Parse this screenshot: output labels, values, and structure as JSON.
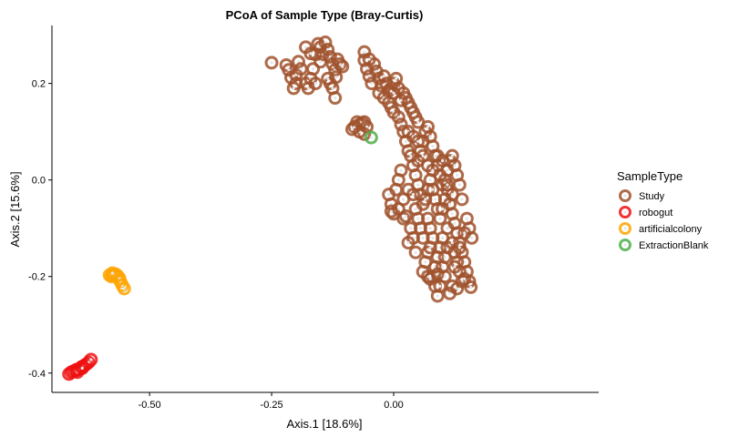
{
  "chart_data": {
    "type": "scatter",
    "title": "PCoA of Sample Type (Bray-Curtis)",
    "xlabel": "Axis.1   [18.6%]",
    "ylabel": "Axis.2   [15.6%]",
    "xlim": [
      -0.7,
      0.42
    ],
    "ylim": [
      -0.44,
      0.32
    ],
    "xticks": [
      -0.5,
      -0.25,
      0.0
    ],
    "xtick_labels": [
      "-0.50",
      "-0.25",
      "0.00"
    ],
    "yticks": [
      -0.4,
      -0.2,
      0.0,
      0.2
    ],
    "ytick_labels": [
      "-0.4",
      "-0.2",
      "0.0",
      "0.2"
    ],
    "grid": false,
    "legend": {
      "title": "SampleType",
      "position": "right"
    },
    "series": [
      {
        "name": "Study",
        "color": "#A0522D",
        "points": [
          [
            -0.25,
            0.243
          ],
          [
            -0.22,
            0.238
          ],
          [
            -0.215,
            0.228
          ],
          [
            -0.21,
            0.212
          ],
          [
            -0.2,
            0.218
          ],
          [
            -0.195,
            0.245
          ],
          [
            -0.19,
            0.23
          ],
          [
            -0.18,
            0.2
          ],
          [
            -0.175,
            0.19
          ],
          [
            -0.17,
            0.21
          ],
          [
            -0.165,
            0.23
          ],
          [
            -0.16,
            0.26
          ],
          [
            -0.155,
            0.282
          ],
          [
            -0.15,
            0.275
          ],
          [
            -0.145,
            0.26
          ],
          [
            -0.14,
            0.285
          ],
          [
            -0.135,
            0.27
          ],
          [
            -0.13,
            0.255
          ],
          [
            -0.125,
            0.24
          ],
          [
            -0.12,
            0.228
          ],
          [
            -0.118,
            0.213
          ],
          [
            -0.13,
            0.2
          ],
          [
            -0.135,
            0.21
          ],
          [
            -0.125,
            0.19
          ],
          [
            -0.12,
            0.17
          ],
          [
            -0.115,
            0.25
          ],
          [
            -0.11,
            0.24
          ],
          [
            -0.105,
            0.235
          ],
          [
            -0.18,
            0.275
          ],
          [
            -0.17,
            0.262
          ],
          [
            -0.15,
            0.245
          ],
          [
            -0.16,
            0.2
          ],
          [
            -0.2,
            0.2
          ],
          [
            -0.205,
            0.19
          ],
          [
            -0.06,
            0.248
          ],
          [
            -0.055,
            0.23
          ],
          [
            -0.05,
            0.215
          ],
          [
            -0.045,
            0.2
          ],
          [
            -0.04,
            0.24
          ],
          [
            -0.035,
            0.225
          ],
          [
            -0.03,
            0.21
          ],
          [
            -0.025,
            0.195
          ],
          [
            -0.03,
            0.18
          ],
          [
            -0.02,
            0.17
          ],
          [
            -0.015,
            0.2
          ],
          [
            -0.01,
            0.185
          ],
          [
            -0.005,
            0.19
          ],
          [
            0.0,
            0.2
          ],
          [
            0.005,
            0.21
          ],
          [
            0.01,
            0.19
          ],
          [
            0.02,
            0.18
          ],
          [
            0.025,
            0.17
          ],
          [
            0.03,
            0.16
          ],
          [
            0.035,
            0.15
          ],
          [
            0.04,
            0.14
          ],
          [
            0.045,
            0.13
          ],
          [
            0.05,
            0.12
          ],
          [
            -0.01,
            0.16
          ],
          [
            -0.005,
            0.15
          ],
          [
            0.0,
            0.14
          ],
          [
            -0.075,
            0.12
          ],
          [
            -0.07,
            0.115
          ],
          [
            -0.065,
            0.118
          ],
          [
            -0.06,
            0.12
          ],
          [
            -0.055,
            0.11
          ],
          [
            -0.06,
            0.095
          ],
          [
            -0.07,
            0.1
          ],
          [
            -0.08,
            0.11
          ],
          [
            -0.085,
            0.105
          ],
          [
            -0.06,
            0.265
          ],
          [
            -0.05,
            0.25
          ],
          [
            -0.02,
            0.215
          ],
          [
            0.0,
            0.18
          ],
          [
            0.015,
            0.165
          ],
          [
            0.01,
            0.13
          ],
          [
            0.015,
            0.115
          ],
          [
            0.02,
            0.1
          ],
          [
            0.025,
            0.08
          ],
          [
            0.03,
            0.06
          ],
          [
            0.035,
            0.05
          ],
          [
            0.04,
            0.03
          ],
          [
            0.05,
            0.04
          ],
          [
            0.055,
            0.06
          ],
          [
            0.06,
            0.08
          ],
          [
            0.065,
            0.1
          ],
          [
            0.07,
            0.11
          ],
          [
            0.075,
            0.09
          ],
          [
            0.08,
            0.07
          ],
          [
            0.085,
            0.05
          ],
          [
            0.09,
            0.03
          ],
          [
            0.095,
            0.01
          ],
          [
            0.1,
            -0.01
          ],
          [
            0.105,
            0.0
          ],
          [
            0.11,
            0.02
          ],
          [
            0.115,
            0.04
          ],
          [
            0.12,
            0.05
          ],
          [
            0.125,
            0.03
          ],
          [
            0.13,
            0.01
          ],
          [
            0.135,
            -0.01
          ],
          [
            0.045,
            0.01
          ],
          [
            0.05,
            -0.01
          ],
          [
            0.055,
            -0.03
          ],
          [
            0.06,
            -0.05
          ],
          [
            0.065,
            -0.04
          ],
          [
            0.07,
            -0.02
          ],
          [
            0.075,
            0.0
          ],
          [
            0.08,
            -0.02
          ],
          [
            0.085,
            -0.04
          ],
          [
            0.09,
            -0.06
          ],
          [
            0.095,
            -0.08
          ],
          [
            0.1,
            -0.06
          ],
          [
            0.105,
            -0.04
          ],
          [
            0.11,
            -0.02
          ],
          [
            0.115,
            -0.05
          ],
          [
            0.12,
            -0.07
          ],
          [
            0.125,
            -0.09
          ],
          [
            0.13,
            -0.11
          ],
          [
            0.135,
            -0.13
          ],
          [
            0.14,
            -0.15
          ],
          [
            0.145,
            -0.17
          ],
          [
            0.15,
            -0.19
          ],
          [
            0.155,
            -0.21
          ],
          [
            0.158,
            -0.222
          ],
          [
            0.11,
            -0.1
          ],
          [
            0.1,
            -0.12
          ],
          [
            0.095,
            -0.14
          ],
          [
            0.09,
            -0.16
          ],
          [
            0.085,
            -0.18
          ],
          [
            0.08,
            -0.2
          ],
          [
            0.085,
            -0.22
          ],
          [
            0.09,
            -0.195
          ],
          [
            0.1,
            -0.18
          ],
          [
            0.105,
            -0.16
          ],
          [
            0.11,
            -0.14
          ],
          [
            0.12,
            -0.13
          ],
          [
            0.125,
            -0.15
          ],
          [
            0.13,
            -0.17
          ],
          [
            0.135,
            -0.19
          ],
          [
            0.14,
            -0.21
          ],
          [
            0.12,
            -0.22
          ],
          [
            0.115,
            -0.235
          ],
          [
            0.13,
            -0.225
          ],
          [
            0.145,
            -0.205
          ],
          [
            0.07,
            -0.15
          ],
          [
            0.065,
            -0.17
          ],
          [
            0.075,
            -0.14
          ],
          [
            0.08,
            -0.12
          ],
          [
            0.075,
            -0.1
          ],
          [
            0.07,
            -0.08
          ],
          [
            -0.01,
            -0.03
          ],
          [
            -0.005,
            -0.05
          ],
          [
            0.0,
            -0.07
          ],
          [
            0.01,
            -0.06
          ],
          [
            0.02,
            -0.04
          ],
          [
            0.03,
            -0.02
          ],
          [
            0.04,
            -0.03
          ],
          [
            0.045,
            -0.06
          ],
          [
            0.05,
            -0.08
          ],
          [
            0.055,
            -0.1
          ],
          [
            0.06,
            -0.12
          ],
          [
            0.04,
            -0.12
          ],
          [
            0.035,
            -0.1
          ],
          [
            0.03,
            -0.13
          ],
          [
            0.045,
            -0.15
          ],
          [
            0.06,
            -0.19
          ],
          [
            0.07,
            -0.2
          ],
          [
            0.075,
            -0.205
          ],
          [
            0.01,
            0.0
          ],
          [
            0.005,
            -0.02
          ],
          [
            0.015,
            0.02
          ],
          [
            0.02,
            -0.08
          ],
          [
            0.025,
            -0.075
          ],
          [
            -0.005,
            -0.065
          ],
          [
            0.03,
            0.1
          ],
          [
            0.04,
            0.09
          ],
          [
            0.05,
            0.08
          ],
          [
            0.06,
            0.05
          ],
          [
            0.07,
            0.03
          ],
          [
            0.08,
            0.02
          ],
          [
            0.09,
            0.05
          ],
          [
            0.1,
            0.04
          ],
          [
            0.11,
            -0.01
          ],
          [
            0.12,
            -0.03
          ],
          [
            0.14,
            -0.04
          ],
          [
            0.15,
            -0.08
          ],
          [
            0.155,
            -0.1
          ],
          [
            0.16,
            -0.12
          ],
          [
            0.145,
            -0.11
          ],
          [
            0.135,
            -0.14
          ],
          [
            0.125,
            -0.18
          ],
          [
            0.105,
            -0.2
          ],
          [
            0.095,
            -0.22
          ],
          [
            0.09,
            -0.24
          ]
        ]
      },
      {
        "name": "robogut",
        "color": "#EE1111",
        "points": [
          [
            -0.665,
            -0.402
          ],
          [
            -0.66,
            -0.398
          ],
          [
            -0.655,
            -0.396
          ],
          [
            -0.65,
            -0.393
          ],
          [
            -0.645,
            -0.392
          ],
          [
            -0.64,
            -0.388
          ],
          [
            -0.635,
            -0.385
          ],
          [
            -0.63,
            -0.382
          ],
          [
            -0.625,
            -0.378
          ],
          [
            -0.62,
            -0.372
          ],
          [
            -0.648,
            -0.398
          ],
          [
            -0.638,
            -0.39
          ]
        ]
      },
      {
        "name": "artificialcolony",
        "color": "#FFA500",
        "points": [
          [
            -0.582,
            -0.197
          ],
          [
            -0.578,
            -0.2
          ],
          [
            -0.574,
            -0.197
          ],
          [
            -0.57,
            -0.195
          ],
          [
            -0.566,
            -0.198
          ],
          [
            -0.562,
            -0.203
          ],
          [
            -0.56,
            -0.21
          ],
          [
            -0.556,
            -0.218
          ],
          [
            -0.552,
            -0.225
          ],
          [
            -0.576,
            -0.193
          ]
        ]
      },
      {
        "name": "ExtractionBlank",
        "color": "#4DAF4A",
        "points": [
          [
            -0.046,
            0.088
          ]
        ]
      }
    ]
  }
}
